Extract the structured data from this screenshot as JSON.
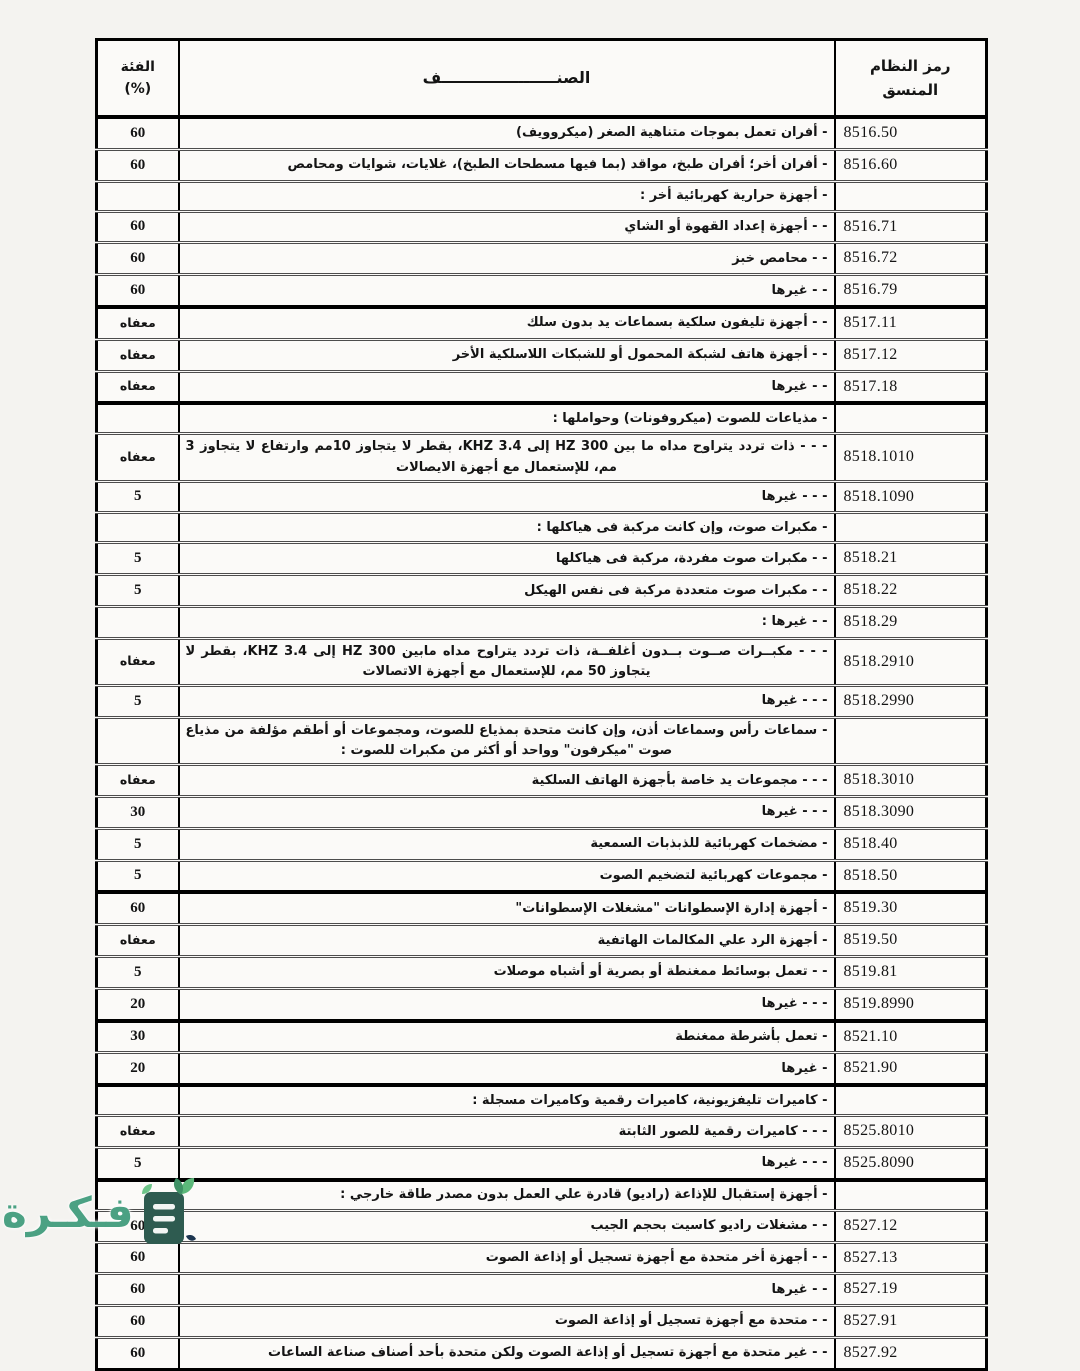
{
  "table": {
    "header": {
      "code_line1": "رمز النظام",
      "code_line2": "المنسق",
      "desc": "الصنـــــــــــــــــــــف",
      "rate_line1": "الفئة",
      "rate_line2": "(%)"
    },
    "rows": [
      {
        "code": "8516.50",
        "desc": "- أفران تعمل بموجات متناهية الصغر (ميكروويف)",
        "rate": "60"
      },
      {
        "code": "8516.60",
        "desc": "- أفران أخر؛ أفران طبخ، مواقد (بما فيها مسطحات الطبخ)، غلايات، شوايات ومحامص",
        "rate": "60"
      },
      {
        "code": "",
        "desc": "- أجهزة حرارية كهربائية أخر :",
        "rate": ""
      },
      {
        "code": "8516.71",
        "desc": "- - أجهزة إعداد القهوة أو الشاي",
        "rate": "60"
      },
      {
        "code": "8516.72",
        "desc": "- - محامص خبز",
        "rate": "60"
      },
      {
        "code": "8516.79",
        "desc": "- - غيرها",
        "rate": "60"
      },
      {
        "code": "8517.11",
        "desc": "- - أجهزة تليفون سلكية بسماعات يد بدون سلك",
        "rate": "معفاه",
        "group_start": true
      },
      {
        "code": "8517.12",
        "desc": "- - أجهزة هاتف لشبكة المحمول أو للشبكات اللاسلكية الأخر",
        "rate": "معفاه"
      },
      {
        "code": "8517.18",
        "desc": "- - غيرها",
        "rate": "معفاه"
      },
      {
        "code": "",
        "desc": "- مذياعات للصوت (ميكروفونات) وحواملها :",
        "rate": "",
        "group_start": true
      },
      {
        "code": "8518.1010",
        "desc": "- - - ذات تردد يتراوح مداه ما بين HZ 300 إلى KHZ 3.4، بقطر لا يتجاوز 10مم وارتفاع لا يتجاوز 3 مم، للإستعمال مع أجهزة الايصالات",
        "rate": "معفاه",
        "multiline": true
      },
      {
        "code": "8518.1090",
        "desc": "- - - غيرها",
        "rate": "5"
      },
      {
        "code": "",
        "desc": "- مكبرات صوت، وإن كانت مركبة فى هياكلها :",
        "rate": ""
      },
      {
        "code": "8518.21",
        "desc": "- - مكبرات صوت مفردة، مركبة فى هياكلها",
        "rate": "5"
      },
      {
        "code": "8518.22",
        "desc": "- - مكبرات صوت متعددة مركبة فى نفس الهيكل",
        "rate": "5"
      },
      {
        "code": "8518.29",
        "desc": "- - غيرها :",
        "rate": ""
      },
      {
        "code": "8518.2910",
        "desc": "- - - مكبــرات صــوت بــدون أغلفــة، ذات تردد يتراوح مداه مابين HZ 300 إلى KHZ 3.4، بقطر لا يتجاوز 50 مم، للإستعمال مع أجهزة الاتصالات",
        "rate": "معفاه",
        "multiline": true
      },
      {
        "code": "8518.2990",
        "desc": "- - - غيرها",
        "rate": "5"
      },
      {
        "code": "",
        "desc": "- سماعات رأس وسماعات أذن، وإن كانت متحدة بمذياع للصوت، ومجموعات أو أطقم مؤلفة من مذياع صوت \"ميكرفون\" وواحد أو أكثر من مكبرات للصوت :",
        "rate": "",
        "multiline": true
      },
      {
        "code": "8518.3010",
        "desc": "- - - مجموعات يد خاصة بأجهزة الهاتف السلكية",
        "rate": "معفاه"
      },
      {
        "code": "8518.3090",
        "desc": "- - - غيرها",
        "rate": "30"
      },
      {
        "code": "8518.40",
        "desc": "- مضخمات كهربائية للذبذبات السمعية",
        "rate": "5"
      },
      {
        "code": "8518.50",
        "desc": "- مجموعات كهربائية لتضخيم الصوت",
        "rate": "5"
      },
      {
        "code": "8519.30",
        "desc": "- أجهزة إدارة الإسطوانات \"مشغلات الإسطوانات\"",
        "rate": "60",
        "group_start": true
      },
      {
        "code": "8519.50",
        "desc": "- أجهزة الرد علي المكالمات الهاتفية",
        "rate": "معفاه"
      },
      {
        "code": "8519.81",
        "desc": "- - تعمل بوسائط ممغنطة أو بصرية أو أشباه موصلات",
        "rate": "5"
      },
      {
        "code": "8519.8990",
        "desc": "- - - غيرها",
        "rate": "20"
      },
      {
        "code": "8521.10",
        "desc": "- تعمل بأشرطة ممغنطة",
        "rate": "30",
        "group_start": true
      },
      {
        "code": "8521.90",
        "desc": "- غيرها",
        "rate": "20"
      },
      {
        "code": "",
        "desc": "- كاميرات تليفزيونية، كاميرات رقمية وكاميرات مسجلة :",
        "rate": "",
        "group_start": true
      },
      {
        "code": "8525.8010",
        "desc": "- - - كاميرات رقمية للصور الثابتة",
        "rate": "معفاه"
      },
      {
        "code": "8525.8090",
        "desc": "- - - غيرها",
        "rate": "5"
      },
      {
        "code": "",
        "desc": "- أجهزة إستقبال للإذاعة (راديو) قادرة علي العمل بدون مصدر طاقة خارجي :",
        "rate": "",
        "group_start": true
      },
      {
        "code": "8527.12",
        "desc": "- - مشغلات راديو كاسيت بحجم الجيب",
        "rate": "60"
      },
      {
        "code": "8527.13",
        "desc": "- - أجهزة أخر متحدة مع أجهزة تسجيل أو إذاعة الصوت",
        "rate": "60"
      },
      {
        "code": "8527.19",
        "desc": "- - غيرها",
        "rate": "60"
      },
      {
        "code": "8527.91",
        "desc": "- - متحدة مع أجهزة تسجيل أو إذاعة الصوت",
        "rate": "60"
      },
      {
        "code": "8527.92",
        "desc": "- - غير متحدة مع أجهزة تسجيل أو إذاعة الصوت ولكن متحدة بأحد أصناف صناعة الساعات",
        "rate": "60"
      }
    ]
  },
  "watermark": {
    "text": "فـكـرة",
    "icon": "book-plant-logo-icon",
    "color": "#4ba183"
  }
}
